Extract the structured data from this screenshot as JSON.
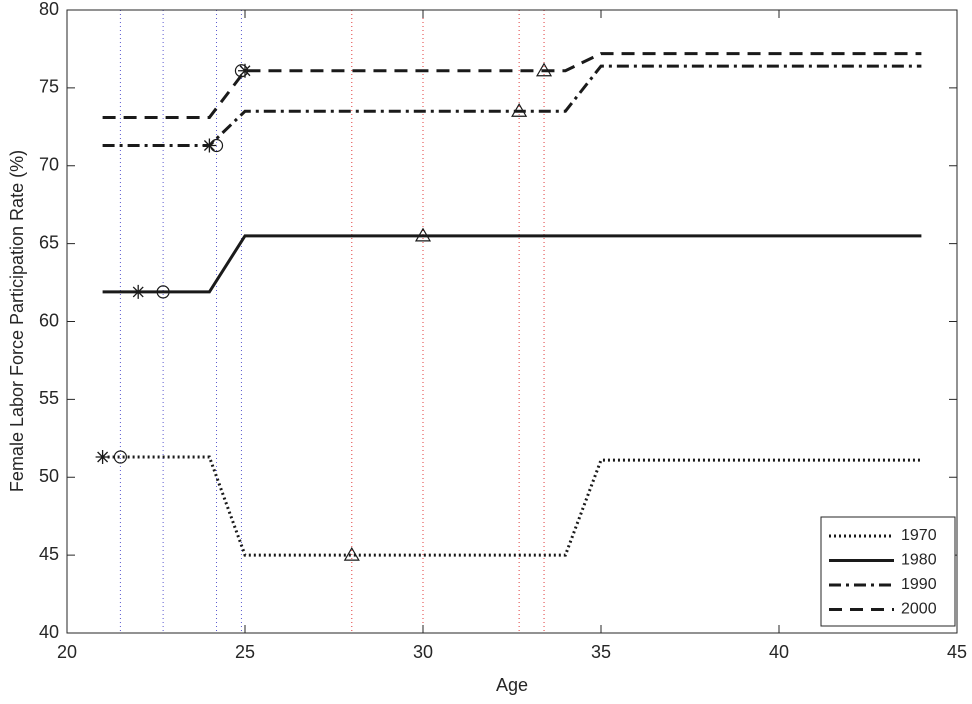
{
  "chart_data": {
    "type": "line",
    "xlabel": "Age",
    "ylabel": "Female Labor Force Participation Rate (%)",
    "x": [
      21,
      24,
      25,
      34,
      35,
      44
    ],
    "series": [
      {
        "name": "1970",
        "color": "#1a1a1a",
        "style": "dotted",
        "values": [
          51.3,
          51.3,
          45,
          45,
          51.1,
          51.1
        ],
        "asterisk": {
          "x": 21,
          "y": 51.3
        },
        "circle": {
          "x": 21.5,
          "y": 51.3
        },
        "triangle": {
          "x": 28,
          "y": 45
        }
      },
      {
        "name": "1980",
        "color": "#1a1a1a",
        "style": "solid",
        "values": [
          61.9,
          61.9,
          65.5,
          65.5,
          65.5,
          65.5
        ],
        "asterisk": {
          "x": 22,
          "y": 61.9
        },
        "circle": {
          "x": 22.7,
          "y": 61.9
        },
        "triangle": {
          "x": 30,
          "y": 65.5
        }
      },
      {
        "name": "1990",
        "color": "#1a1a1a",
        "style": "dashdot",
        "values": [
          71.3,
          71.3,
          73.5,
          73.5,
          76.4,
          76.4
        ],
        "asterisk": {
          "x": 24,
          "y": 71.3
        },
        "circle": {
          "x": 24.2,
          "y": 71.3
        },
        "triangle": {
          "x": 32.7,
          "y": 73.5
        }
      },
      {
        "name": "2000",
        "color": "#1a1a1a",
        "style": "dashed",
        "values": [
          73.1,
          73.1,
          76.1,
          76.1,
          77.2,
          77.2
        ],
        "asterisk": {
          "x": 25,
          "y": 76.1
        },
        "circle": {
          "x": 24.9,
          "y": 76.1
        },
        "triangle": {
          "x": 33.4,
          "y": 76.1
        }
      }
    ],
    "vline_colors": {
      "circle": "#5a5ad0",
      "triangle": "#e03a3a"
    },
    "xlim": [
      20,
      45
    ],
    "xticks": [
      20,
      25,
      30,
      35,
      40,
      45
    ],
    "ylim": [
      40,
      80
    ],
    "yticks": [
      40,
      45,
      50,
      55,
      60,
      65,
      70,
      75,
      80
    ],
    "legend": "lower right"
  }
}
